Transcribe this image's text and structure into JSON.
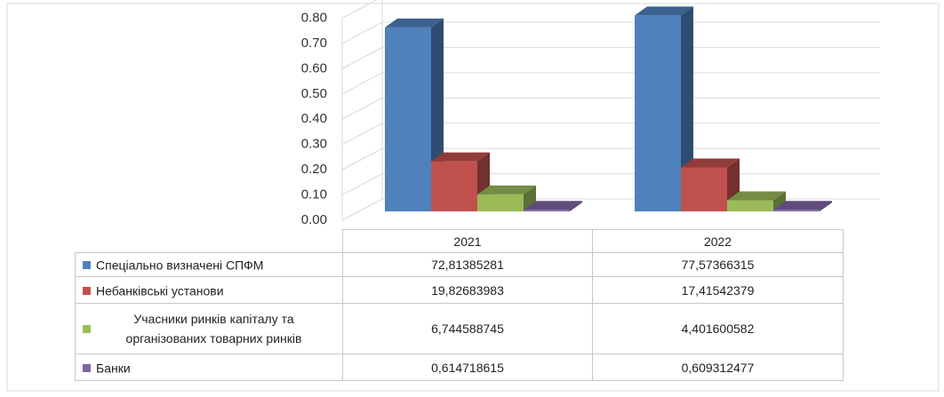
{
  "chart_data": {
    "type": "bar3d",
    "categories": [
      "2021",
      "2022"
    ],
    "series": [
      {
        "name": "Спеціально визначені СПФМ",
        "color": "#4f81bd",
        "values": [
          0.7281385281,
          0.7757366315
        ],
        "value_labels": [
          "72,81385281",
          "77,57366315"
        ]
      },
      {
        "name": "Небанківські установи",
        "color": "#c0504d",
        "values": [
          0.1982683983,
          0.1741542379
        ],
        "value_labels": [
          "19,82683983",
          "17,41542379"
        ]
      },
      {
        "name": "Учасники ринків капіталу та організованих товарних ринків",
        "color": "#9bbb59",
        "values": [
          0.06744588745,
          0.04401600582
        ],
        "value_labels": [
          "6,744588745",
          "4,401600582"
        ]
      },
      {
        "name": "Банки",
        "color": "#8064a2",
        "values": [
          0.00614718615,
          0.00609312477
        ],
        "value_labels": [
          "0,614718615",
          "0,609312477"
        ]
      }
    ],
    "ylim": [
      0,
      0.8
    ],
    "yticks": [
      {
        "value": 0,
        "label": "0.00"
      },
      {
        "value": 0.1,
        "label": "0.10"
      },
      {
        "value": 0.2,
        "label": "0.20"
      },
      {
        "value": 0.3,
        "label": "0.30"
      },
      {
        "value": 0.4,
        "label": "0.40"
      },
      {
        "value": 0.5,
        "label": "0.50"
      },
      {
        "value": 0.6,
        "label": "0.60"
      },
      {
        "value": 0.7,
        "label": "0.70"
      },
      {
        "value": 0.8,
        "label": "0.80"
      }
    ],
    "grid": true
  }
}
